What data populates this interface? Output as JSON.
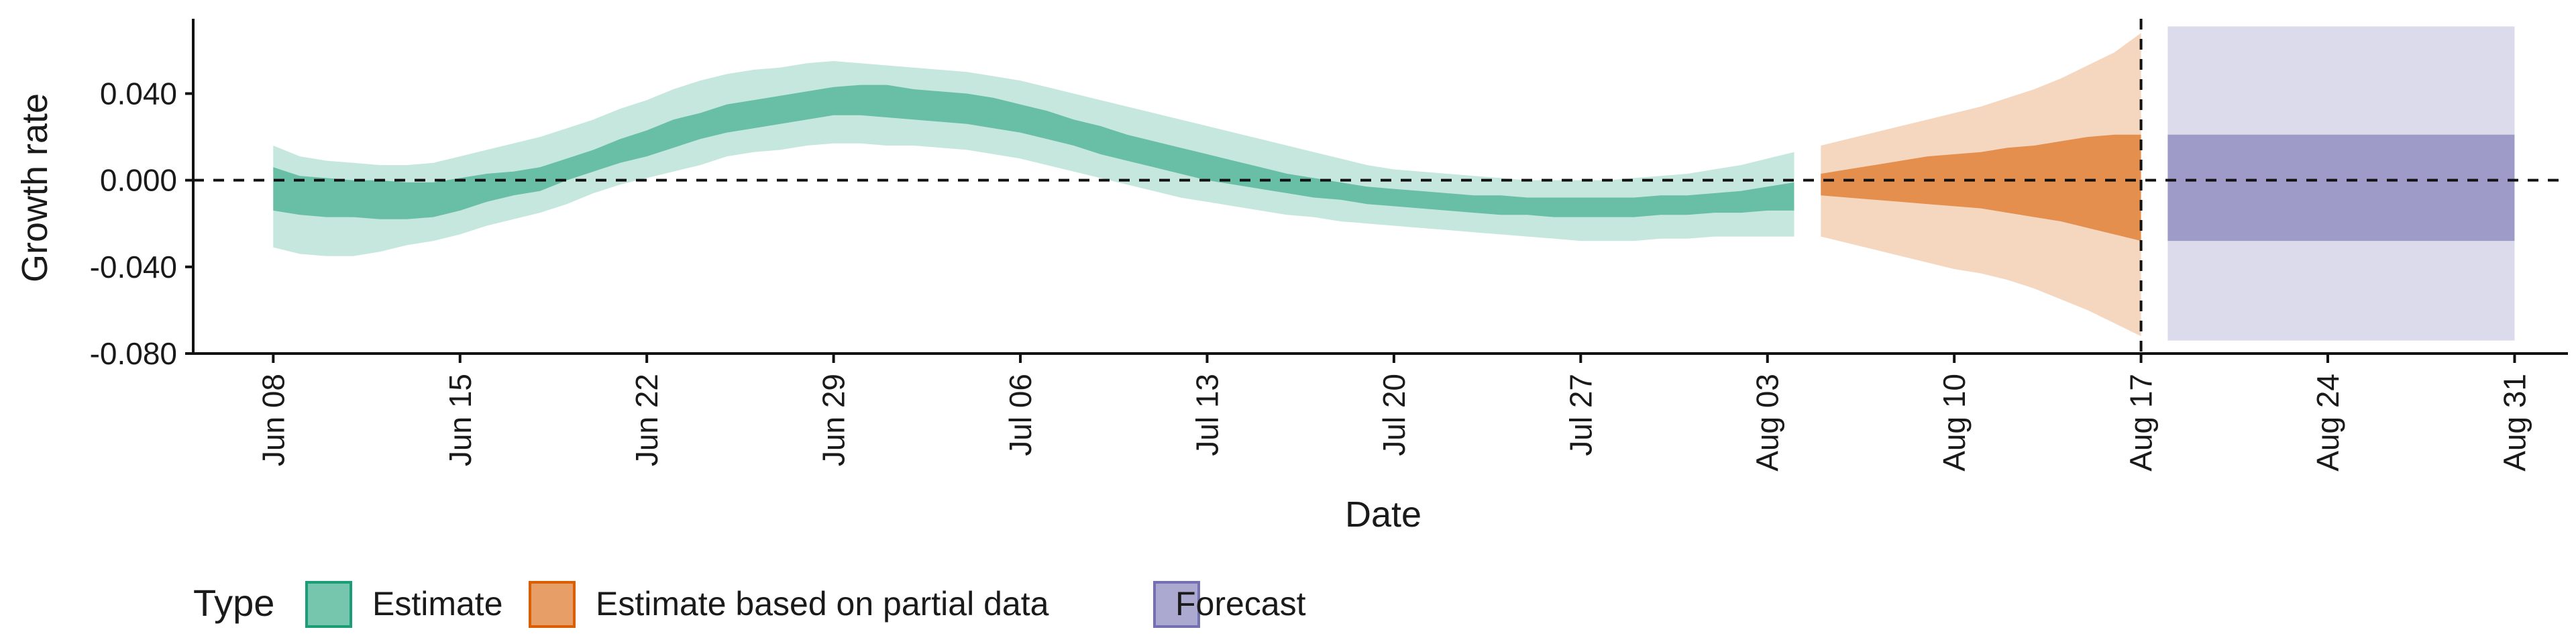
{
  "chart_data": {
    "type": "area",
    "xlabel": "Date",
    "ylabel": "Growth rate",
    "ylim": [
      -0.08,
      0.077
    ],
    "xlim": [
      "2020-06-05",
      "2020-09-02"
    ],
    "y_ticks": [
      {
        "value": -0.08,
        "label": "-0.080"
      },
      {
        "value": -0.04,
        "label": "-0.040"
      },
      {
        "value": 0.0,
        "label": "0.000"
      },
      {
        "value": 0.04,
        "label": "0.040"
      }
    ],
    "x_ticks": [
      {
        "date": "2020-06-08",
        "label": "Jun 08"
      },
      {
        "date": "2020-06-15",
        "label": "Jun 15"
      },
      {
        "date": "2020-06-22",
        "label": "Jun 22"
      },
      {
        "date": "2020-06-29",
        "label": "Jun 29"
      },
      {
        "date": "2020-07-06",
        "label": "Jul 06"
      },
      {
        "date": "2020-07-13",
        "label": "Jul 13"
      },
      {
        "date": "2020-07-20",
        "label": "Jul 20"
      },
      {
        "date": "2020-07-27",
        "label": "Jul 27"
      },
      {
        "date": "2020-08-03",
        "label": "Aug 03"
      },
      {
        "date": "2020-08-10",
        "label": "Aug 10"
      },
      {
        "date": "2020-08-17",
        "label": "Aug 17"
      },
      {
        "date": "2020-08-24",
        "label": "Aug 24"
      },
      {
        "date": "2020-08-31",
        "label": "Aug 31"
      }
    ],
    "reference_lines": [
      {
        "axis": "y",
        "value": 0,
        "style": "dashed"
      },
      {
        "axis": "x",
        "value": "2020-08-17",
        "style": "dashed"
      }
    ],
    "legend": {
      "title": "Type",
      "position": "bottom-left",
      "entries": [
        {
          "label": "Estimate",
          "fill": "#1b9e77",
          "border": "#1b9e77"
        },
        {
          "label": "Estimate based on partial data",
          "fill": "#d95f02",
          "border": "#d95f02"
        },
        {
          "label": "Forecast",
          "fill": "#7570b3",
          "border": "#7570b3"
        }
      ]
    },
    "series": [
      {
        "name": "Estimate",
        "color": "#1b9e77",
        "outer_opacity": 0.25,
        "inner_opacity": 0.55,
        "points": [
          {
            "date": "2020-06-08",
            "outer": [
              -0.031,
              0.016
            ],
            "inner": [
              -0.014,
              0.006
            ]
          },
          {
            "date": "2020-06-09",
            "outer": [
              -0.034,
              0.011
            ],
            "inner": [
              -0.016,
              0.002
            ]
          },
          {
            "date": "2020-06-10",
            "outer": [
              -0.035,
              0.009
            ],
            "inner": [
              -0.017,
              0.001
            ]
          },
          {
            "date": "2020-06-11",
            "outer": [
              -0.035,
              0.008
            ],
            "inner": [
              -0.017,
              0.0
            ]
          },
          {
            "date": "2020-06-12",
            "outer": [
              -0.033,
              0.007
            ],
            "inner": [
              -0.018,
              0.0
            ]
          },
          {
            "date": "2020-06-13",
            "outer": [
              -0.03,
              0.007
            ],
            "inner": [
              -0.018,
              -0.001
            ]
          },
          {
            "date": "2020-06-14",
            "outer": [
              -0.028,
              0.008
            ],
            "inner": [
              -0.017,
              -0.001
            ]
          },
          {
            "date": "2020-06-15",
            "outer": [
              -0.025,
              0.011
            ],
            "inner": [
              -0.014,
              0.001
            ]
          },
          {
            "date": "2020-06-16",
            "outer": [
              -0.021,
              0.014
            ],
            "inner": [
              -0.01,
              0.003
            ]
          },
          {
            "date": "2020-06-17",
            "outer": [
              -0.018,
              0.017
            ],
            "inner": [
              -0.007,
              0.004
            ]
          },
          {
            "date": "2020-06-18",
            "outer": [
              -0.015,
              0.02
            ],
            "inner": [
              -0.005,
              0.006
            ]
          },
          {
            "date": "2020-06-19",
            "outer": [
              -0.011,
              0.024
            ],
            "inner": [
              0.0,
              0.01
            ]
          },
          {
            "date": "2020-06-20",
            "outer": [
              -0.006,
              0.028
            ],
            "inner": [
              0.004,
              0.014
            ]
          },
          {
            "date": "2020-06-21",
            "outer": [
              -0.002,
              0.033
            ],
            "inner": [
              0.008,
              0.019
            ]
          },
          {
            "date": "2020-06-22",
            "outer": [
              0.001,
              0.037
            ],
            "inner": [
              0.011,
              0.023
            ]
          },
          {
            "date": "2020-06-23",
            "outer": [
              0.004,
              0.042
            ],
            "inner": [
              0.015,
              0.028
            ]
          },
          {
            "date": "2020-06-24",
            "outer": [
              0.007,
              0.046
            ],
            "inner": [
              0.019,
              0.031
            ]
          },
          {
            "date": "2020-06-25",
            "outer": [
              0.011,
              0.049
            ],
            "inner": [
              0.022,
              0.035
            ]
          },
          {
            "date": "2020-06-26",
            "outer": [
              0.013,
              0.051
            ],
            "inner": [
              0.024,
              0.037
            ]
          },
          {
            "date": "2020-06-27",
            "outer": [
              0.014,
              0.052
            ],
            "inner": [
              0.026,
              0.039
            ]
          },
          {
            "date": "2020-06-28",
            "outer": [
              0.016,
              0.054
            ],
            "inner": [
              0.028,
              0.041
            ]
          },
          {
            "date": "2020-06-29",
            "outer": [
              0.017,
              0.055
            ],
            "inner": [
              0.03,
              0.043
            ]
          },
          {
            "date": "2020-06-30",
            "outer": [
              0.017,
              0.054
            ],
            "inner": [
              0.03,
              0.044
            ]
          },
          {
            "date": "2020-07-01",
            "outer": [
              0.016,
              0.053
            ],
            "inner": [
              0.029,
              0.044
            ]
          },
          {
            "date": "2020-07-02",
            "outer": [
              0.016,
              0.052
            ],
            "inner": [
              0.028,
              0.042
            ]
          },
          {
            "date": "2020-07-03",
            "outer": [
              0.015,
              0.051
            ],
            "inner": [
              0.027,
              0.041
            ]
          },
          {
            "date": "2020-07-04",
            "outer": [
              0.014,
              0.05
            ],
            "inner": [
              0.026,
              0.04
            ]
          },
          {
            "date": "2020-07-05",
            "outer": [
              0.012,
              0.048
            ],
            "inner": [
              0.024,
              0.038
            ]
          },
          {
            "date": "2020-07-06",
            "outer": [
              0.01,
              0.046
            ],
            "inner": [
              0.022,
              0.035
            ]
          },
          {
            "date": "2020-07-07",
            "outer": [
              0.007,
              0.043
            ],
            "inner": [
              0.019,
              0.032
            ]
          },
          {
            "date": "2020-07-08",
            "outer": [
              0.004,
              0.04
            ],
            "inner": [
              0.016,
              0.028
            ]
          },
          {
            "date": "2020-07-09",
            "outer": [
              0.001,
              0.037
            ],
            "inner": [
              0.012,
              0.025
            ]
          },
          {
            "date": "2020-07-10",
            "outer": [
              -0.002,
              0.034
            ],
            "inner": [
              0.009,
              0.021
            ]
          },
          {
            "date": "2020-07-11",
            "outer": [
              -0.005,
              0.031
            ],
            "inner": [
              0.006,
              0.018
            ]
          },
          {
            "date": "2020-07-12",
            "outer": [
              -0.008,
              0.028
            ],
            "inner": [
              0.003,
              0.015
            ]
          },
          {
            "date": "2020-07-13",
            "outer": [
              -0.01,
              0.025
            ],
            "inner": [
              0.0,
              0.012
            ]
          },
          {
            "date": "2020-07-14",
            "outer": [
              -0.012,
              0.022
            ],
            "inner": [
              -0.002,
              0.009
            ]
          },
          {
            "date": "2020-07-15",
            "outer": [
              -0.014,
              0.019
            ],
            "inner": [
              -0.004,
              0.006
            ]
          },
          {
            "date": "2020-07-16",
            "outer": [
              -0.016,
              0.016
            ],
            "inner": [
              -0.006,
              0.003
            ]
          },
          {
            "date": "2020-07-17",
            "outer": [
              -0.017,
              0.013
            ],
            "inner": [
              -0.008,
              0.001
            ]
          },
          {
            "date": "2020-07-18",
            "outer": [
              -0.019,
              0.01
            ],
            "inner": [
              -0.009,
              -0.001
            ]
          },
          {
            "date": "2020-07-19",
            "outer": [
              -0.02,
              0.007
            ],
            "inner": [
              -0.011,
              -0.003
            ]
          },
          {
            "date": "2020-07-20",
            "outer": [
              -0.021,
              0.005
            ],
            "inner": [
              -0.012,
              -0.004
            ]
          },
          {
            "date": "2020-07-21",
            "outer": [
              -0.022,
              0.004
            ],
            "inner": [
              -0.013,
              -0.005
            ]
          },
          {
            "date": "2020-07-22",
            "outer": [
              -0.023,
              0.003
            ],
            "inner": [
              -0.014,
              -0.006
            ]
          },
          {
            "date": "2020-07-23",
            "outer": [
              -0.024,
              0.002
            ],
            "inner": [
              -0.015,
              -0.007
            ]
          },
          {
            "date": "2020-07-24",
            "outer": [
              -0.025,
              0.001
            ],
            "inner": [
              -0.016,
              -0.007
            ]
          },
          {
            "date": "2020-07-25",
            "outer": [
              -0.026,
              0.0
            ],
            "inner": [
              -0.016,
              -0.008
            ]
          },
          {
            "date": "2020-07-26",
            "outer": [
              -0.027,
              0.0
            ],
            "inner": [
              -0.017,
              -0.008
            ]
          },
          {
            "date": "2020-07-27",
            "outer": [
              -0.028,
              0.0
            ],
            "inner": [
              -0.017,
              -0.008
            ]
          },
          {
            "date": "2020-07-28",
            "outer": [
              -0.028,
              0.0
            ],
            "inner": [
              -0.017,
              -0.008
            ]
          },
          {
            "date": "2020-07-29",
            "outer": [
              -0.028,
              0.001
            ],
            "inner": [
              -0.017,
              -0.008
            ]
          },
          {
            "date": "2020-07-30",
            "outer": [
              -0.027,
              0.002
            ],
            "inner": [
              -0.016,
              -0.007
            ]
          },
          {
            "date": "2020-07-31",
            "outer": [
              -0.027,
              0.003
            ],
            "inner": [
              -0.016,
              -0.007
            ]
          },
          {
            "date": "2020-08-01",
            "outer": [
              -0.026,
              0.005
            ],
            "inner": [
              -0.015,
              -0.006
            ]
          },
          {
            "date": "2020-08-02",
            "outer": [
              -0.026,
              0.007
            ],
            "inner": [
              -0.015,
              -0.005
            ]
          },
          {
            "date": "2020-08-03",
            "outer": [
              -0.026,
              0.01
            ],
            "inner": [
              -0.014,
              -0.003
            ]
          },
          {
            "date": "2020-08-04",
            "outer": [
              -0.026,
              0.013
            ],
            "inner": [
              -0.014,
              -0.001
            ]
          }
        ]
      },
      {
        "name": "Estimate based on partial data",
        "color": "#d95f02",
        "outer_opacity": 0.25,
        "inner_opacity": 0.6,
        "points": [
          {
            "date": "2020-08-05",
            "outer": [
              -0.026,
              0.016
            ],
            "inner": [
              -0.007,
              0.003
            ]
          },
          {
            "date": "2020-08-06",
            "outer": [
              -0.029,
              0.019
            ],
            "inner": [
              -0.008,
              0.005
            ]
          },
          {
            "date": "2020-08-07",
            "outer": [
              -0.032,
              0.022
            ],
            "inner": [
              -0.009,
              0.007
            ]
          },
          {
            "date": "2020-08-08",
            "outer": [
              -0.035,
              0.025
            ],
            "inner": [
              -0.01,
              0.009
            ]
          },
          {
            "date": "2020-08-09",
            "outer": [
              -0.038,
              0.028
            ],
            "inner": [
              -0.011,
              0.011
            ]
          },
          {
            "date": "2020-08-10",
            "outer": [
              -0.041,
              0.031
            ],
            "inner": [
              -0.012,
              0.012
            ]
          },
          {
            "date": "2020-08-11",
            "outer": [
              -0.043,
              0.034
            ],
            "inner": [
              -0.013,
              0.013
            ]
          },
          {
            "date": "2020-08-12",
            "outer": [
              -0.046,
              0.038
            ],
            "inner": [
              -0.015,
              0.015
            ]
          },
          {
            "date": "2020-08-13",
            "outer": [
              -0.05,
              0.042
            ],
            "inner": [
              -0.017,
              0.016
            ]
          },
          {
            "date": "2020-08-14",
            "outer": [
              -0.055,
              0.047
            ],
            "inner": [
              -0.019,
              0.018
            ]
          },
          {
            "date": "2020-08-15",
            "outer": [
              -0.06,
              0.053
            ],
            "inner": [
              -0.022,
              0.02
            ]
          },
          {
            "date": "2020-08-16",
            "outer": [
              -0.066,
              0.059
            ],
            "inner": [
              -0.025,
              0.021
            ]
          },
          {
            "date": "2020-08-17",
            "outer": [
              -0.072,
              0.068
            ],
            "inner": [
              -0.028,
              0.021
            ]
          }
        ]
      },
      {
        "name": "Forecast",
        "color": "#7570b3",
        "outer_opacity": 0.25,
        "inner_opacity": 0.6,
        "points": [
          {
            "date": "2020-08-18",
            "outer": [
              -0.074,
              0.071
            ],
            "inner": [
              -0.028,
              0.021
            ]
          },
          {
            "date": "2020-08-31",
            "outer": [
              -0.074,
              0.071
            ],
            "inner": [
              -0.028,
              0.021
            ]
          }
        ]
      }
    ]
  }
}
